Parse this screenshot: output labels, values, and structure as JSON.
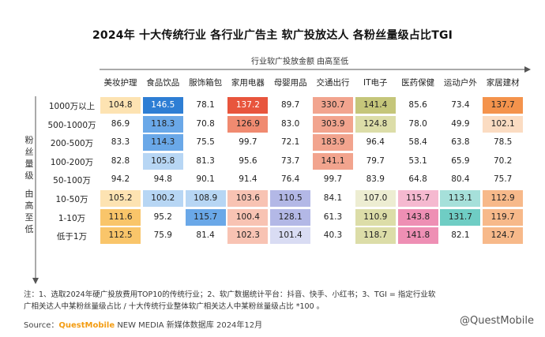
{
  "title": "2024年 十大传统行业 各行业广告主 软广投放达人 各粉丝量级占比TGI",
  "x_axis_label": "行业软广投放金额 由高至低",
  "y_axis_label_1": "粉丝量级",
  "y_axis_label_2": "由高至低",
  "note_line1": "注：1、选取2024年硬广投放费用TOP10的传统行业；2、软广数据统计平台：抖音、快手、小红书；3、TGI = 指定行业软",
  "note_line2": "广相关达人中某粉丝量级占比 / 十大传统行业整体软广相关达人中某粉丝量级占比 *100 。",
  "source_prefix": "Source：",
  "source_brand": "QuestMobile",
  "source_rest": "NEW MEDIA 新媒体数据库 2024年12月",
  "watermark": "@QuestMobile",
  "colors": {
    "orange_dark": "#f6a623",
    "orange_mid": "#f9c56a",
    "orange_light": "#fde3b2",
    "blue_dark": "#2e7ed4",
    "blue_mid": "#6aa8e8",
    "blue_light": "#b7d6f4",
    "red_dark": "#e8553d",
    "red_mid": "#f08a70",
    "red_light": "#f8c3b3",
    "purple_dark": "#8f97d6",
    "purple_mid": "#b3b8e6",
    "purple_light": "#d9dcf3",
    "salmon_dark": "#f2a48e",
    "salmon_mid": "#f7c5b6",
    "salmon_light": "#fbe3da",
    "olive_dark": "#c5c67a",
    "olive_mid": "#dcdda8",
    "olive_light": "#ededd2",
    "pink_dark": "#ee8fb4",
    "pink_mid": "#f5b9d0",
    "pink_light": "#fadbe7",
    "teal_dark": "#6fcdc4",
    "teal_mid": "#a6e0da",
    "teal_light": "#d3f0ec",
    "peach_dark": "#f4934c",
    "peach_mid": "#f7b98a",
    "peach_light": "#fbdcc2"
  },
  "chart_data": {
    "type": "heatmap",
    "title": "2024年 十大传统行业 各行业广告主 软广投放达人 各粉丝量级占比TGI",
    "columns": [
      "美妆护理",
      "食品饮品",
      "服饰箱包",
      "家用电器",
      "母婴用品",
      "交通出行",
      "IT电子",
      "医药保健",
      "运动户外",
      "家居建材"
    ],
    "rows": [
      "1000万以上",
      "500-1000万",
      "200-500万",
      "100-200万",
      "50-100万",
      "10-50万",
      "1-10万",
      "低于1万"
    ],
    "values": [
      [
        104.8,
        146.5,
        78.1,
        137.2,
        89.7,
        330.7,
        141.4,
        85.6,
        73.4,
        137.7
      ],
      [
        86.9,
        118.3,
        70.8,
        126.9,
        83.0,
        303.9,
        124.8,
        78.0,
        49.9,
        102.1
      ],
      [
        83.3,
        114.3,
        75.5,
        99.7,
        72.1,
        183.9,
        96.4,
        58.4,
        63.8,
        78.5
      ],
      [
        82.8,
        105.8,
        81.3,
        95.6,
        73.7,
        141.1,
        79.7,
        53.1,
        65.9,
        70.2
      ],
      [
        94.2,
        94.8,
        90.1,
        91.4,
        76.4,
        99.7,
        83.9,
        64.8,
        80.4,
        75.7
      ],
      [
        105.2,
        100.2,
        108.9,
        103.6,
        110.5,
        84.1,
        107.0,
        115.7,
        113.1,
        112.9
      ],
      [
        111.6,
        95.2,
        115.7,
        100.4,
        128.1,
        61.3,
        110.9,
        143.8,
        131.7,
        119.7
      ],
      [
        112.5,
        75.9,
        81.4,
        102.3,
        101.4,
        40.3,
        118.7,
        141.8,
        82.1,
        124.7
      ]
    ]
  }
}
